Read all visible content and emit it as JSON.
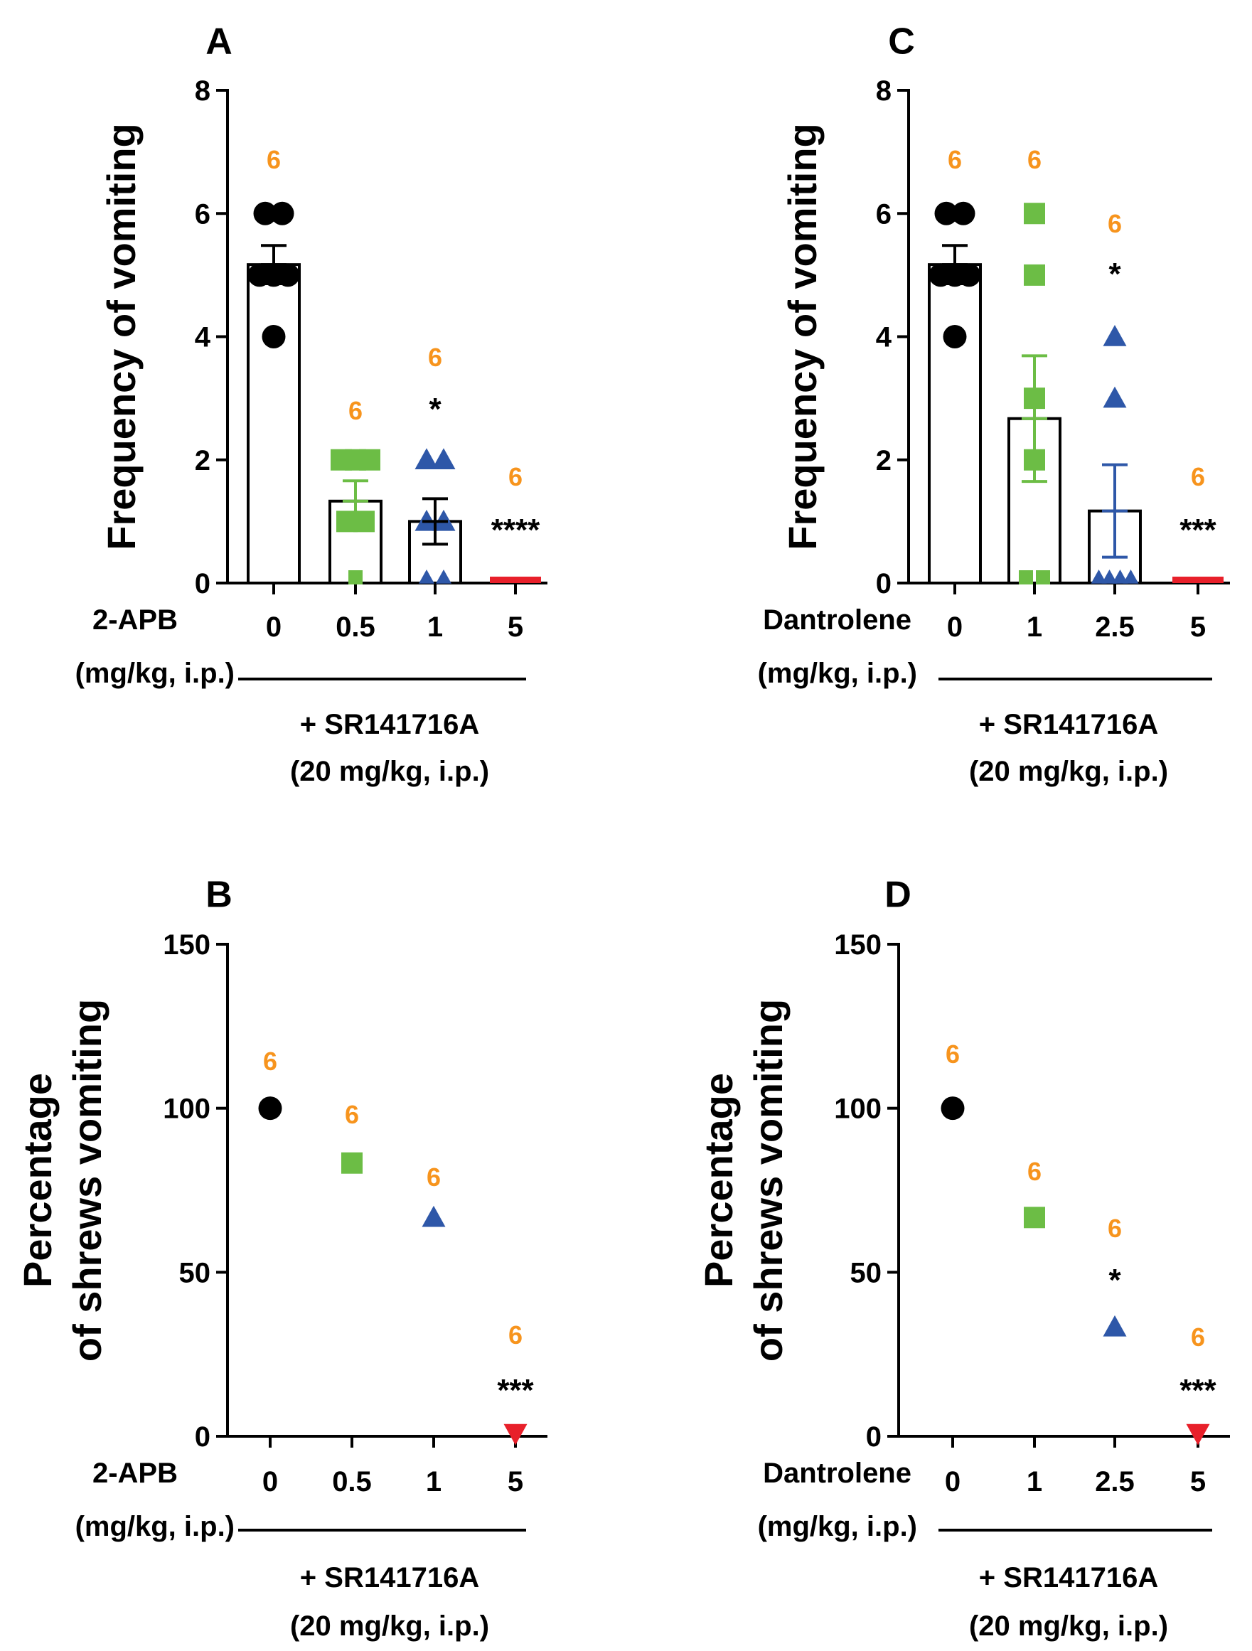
{
  "colors": {
    "axis": "#000000",
    "n_label": "#f7941d",
    "group_0": "#000000",
    "group_1": "#6cbd45",
    "group_2": "#2e57a8",
    "group_3": "#e8202a"
  },
  "chart_data": [
    {
      "panel_letter": "A",
      "type": "bar",
      "ylabel_lines": [
        "Frequency of vomiting"
      ],
      "ylim": [
        0,
        8
      ],
      "yticks": [
        "0",
        "2",
        "4",
        "6",
        "8"
      ],
      "drug_label": "2-APB",
      "dose_unit_label": "(mg/kg, i.p.)",
      "categories": [
        "0",
        "0.5",
        "1",
        "5"
      ],
      "markers": [
        "circle",
        "square",
        "triangle",
        "triangle-down"
      ],
      "values": [
        5.17,
        1.33,
        1.0,
        0.0
      ],
      "errors": [
        0.31,
        0.33,
        0.37,
        0.0
      ],
      "points": [
        [
          6,
          6,
          5,
          5,
          5,
          4
        ],
        [
          2,
          2,
          2,
          1,
          1,
          0
        ],
        [
          2,
          2,
          1,
          1,
          0,
          0
        ],
        [
          0,
          0,
          0,
          0,
          0,
          0
        ]
      ],
      "n_labels": [
        "6",
        "6",
        "6",
        "6"
      ],
      "significance": [
        "",
        "",
        "*",
        "****"
      ],
      "footer_lines": [
        "+ SR141716A",
        "(20 mg/kg, i.p.)"
      ]
    },
    {
      "panel_letter": "B",
      "type": "scatter",
      "ylabel_lines": [
        "Percentage",
        "of shrews vomiting"
      ],
      "ylim": [
        0,
        150
      ],
      "yticks": [
        "0",
        "50",
        "100",
        "150"
      ],
      "drug_label": "2-APB",
      "dose_unit_label": "(mg/kg, i.p.)",
      "categories": [
        "0",
        "0.5",
        "1",
        "5"
      ],
      "markers": [
        "circle",
        "square",
        "triangle",
        "triangle-down"
      ],
      "values": [
        100,
        83.3,
        66.7,
        0
      ],
      "n_labels": [
        "6",
        "6",
        "6",
        "6"
      ],
      "significance": [
        "",
        "",
        "",
        "***"
      ],
      "footer_lines": [
        "+ SR141716A",
        "(20 mg/kg, i.p.)"
      ]
    },
    {
      "panel_letter": "C",
      "type": "bar",
      "ylabel_lines": [
        "Frequency of vomiting"
      ],
      "ylim": [
        0,
        8
      ],
      "yticks": [
        "0",
        "2",
        "4",
        "6",
        "8"
      ],
      "drug_label": "Dantrolene",
      "dose_unit_label": "(mg/kg, i.p.)",
      "categories": [
        "0",
        "1",
        "2.5",
        "5"
      ],
      "markers": [
        "circle",
        "square",
        "triangle",
        "triangle-down"
      ],
      "values": [
        5.17,
        2.67,
        1.17,
        0.0
      ],
      "errors": [
        0.31,
        1.02,
        0.75,
        0.0
      ],
      "points": [
        [
          6,
          6,
          5,
          5,
          5,
          4
        ],
        [
          6,
          5,
          3,
          2,
          0,
          0
        ],
        [
          4,
          3,
          0,
          0,
          0,
          0
        ],
        [
          0,
          0,
          0,
          0,
          0,
          0
        ]
      ],
      "n_labels": [
        "6",
        "6",
        "6",
        "6"
      ],
      "significance": [
        "",
        "",
        "*",
        "***"
      ],
      "footer_lines": [
        "+ SR141716A",
        "(20 mg/kg, i.p.)"
      ]
    },
    {
      "panel_letter": "D",
      "type": "scatter",
      "ylabel_lines": [
        "Percentage",
        "of shrews vomiting"
      ],
      "ylim": [
        0,
        150
      ],
      "yticks": [
        "0",
        "50",
        "100",
        "150"
      ],
      "drug_label": "Dantrolene",
      "dose_unit_label": "(mg/kg, i.p.)",
      "categories": [
        "0",
        "1",
        "2.5",
        "5"
      ],
      "markers": [
        "circle",
        "square",
        "triangle",
        "triangle-down"
      ],
      "values": [
        100,
        66.7,
        33.3,
        0
      ],
      "n_labels": [
        "6",
        "6",
        "6",
        "6"
      ],
      "significance": [
        "",
        "",
        "*",
        "***"
      ],
      "footer_lines": [
        "+ SR141716A",
        "(20 mg/kg, i.p.)"
      ]
    }
  ]
}
